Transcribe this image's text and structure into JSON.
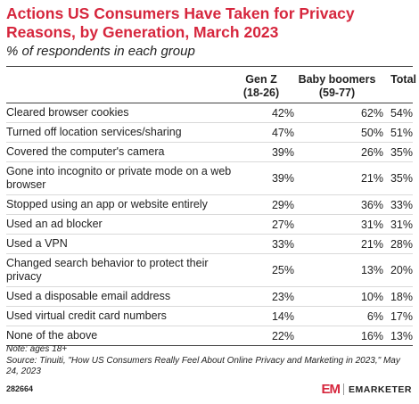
{
  "header": {
    "title": "Actions US Consumers Have Taken for Privacy Reasons, by Generation, March 2023",
    "subtitle": "% of respondents in each group"
  },
  "chart_data": {
    "type": "table",
    "columns": [
      {
        "line1": "Gen Z",
        "line2": "(18-26)"
      },
      {
        "line1": "Baby boomers",
        "line2": "(59-77)"
      },
      {
        "line1": "Total",
        "line2": ""
      }
    ],
    "rows": [
      {
        "label": "Cleared browser cookies",
        "values": [
          "42%",
          "62%",
          "54%"
        ]
      },
      {
        "label": "Turned off location services/sharing",
        "values": [
          "47%",
          "50%",
          "51%"
        ]
      },
      {
        "label": "Covered the computer's camera",
        "values": [
          "39%",
          "26%",
          "35%"
        ]
      },
      {
        "label": "Gone into incognito or private mode on a web browser",
        "values": [
          "39%",
          "21%",
          "35%"
        ]
      },
      {
        "label": "Stopped using an app or website entirely",
        "values": [
          "29%",
          "36%",
          "33%"
        ]
      },
      {
        "label": "Used an ad blocker",
        "values": [
          "27%",
          "31%",
          "31%"
        ]
      },
      {
        "label": "Used a VPN",
        "values": [
          "33%",
          "21%",
          "28%"
        ]
      },
      {
        "label": "Changed search behavior to protect their privacy",
        "values": [
          "25%",
          "13%",
          "20%"
        ]
      },
      {
        "label": "Used a disposable email address",
        "values": [
          "23%",
          "10%",
          "18%"
        ]
      },
      {
        "label": "Used virtual credit card numbers",
        "values": [
          "14%",
          "6%",
          "17%"
        ]
      },
      {
        "label": "None of the above",
        "values": [
          "22%",
          "16%",
          "13%"
        ]
      }
    ]
  },
  "footer": {
    "note": "Note: ages 18+",
    "source": "Source: Tinuiti, \"How US Consumers Really Feel About Online Privacy and Marketing in 2023,\" May 24, 2023",
    "code": "282664",
    "brand_logo": "EM",
    "brand_name": "EMARKETER"
  },
  "colors": {
    "title": "#d6263d",
    "brand": "#d6263d"
  }
}
